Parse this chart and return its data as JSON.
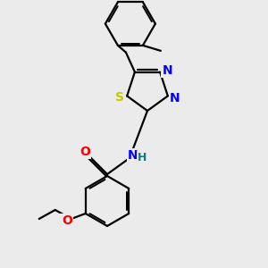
{
  "background_color": "#ebebeb",
  "bond_color": "#000000",
  "atom_colors": {
    "N": "#0000ff",
    "S": "#c8c800",
    "O": "#ff0000",
    "H": "#008080",
    "C": "#000000"
  },
  "figsize": [
    3.0,
    3.0
  ],
  "dpi": 100,
  "lw": 1.6,
  "fontsize": 9
}
